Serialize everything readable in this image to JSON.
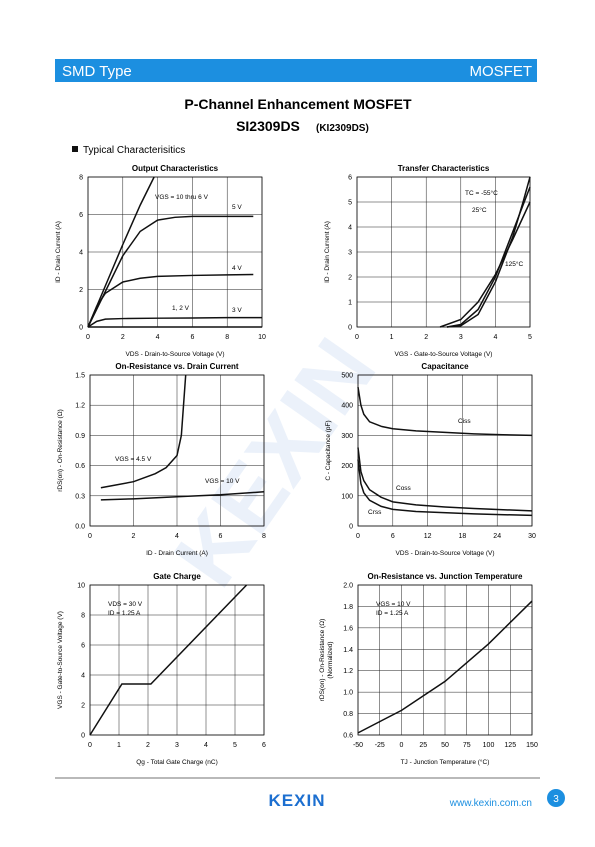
{
  "header": {
    "left": "SMD Type",
    "right": "MOSFET"
  },
  "title": {
    "line1": "P-Channel Enhancement MOSFET",
    "part": "SI2309DS",
    "alt": "(KI2309DS)"
  },
  "section": "Typical Characterisitics",
  "watermark": "KEXIN",
  "footer": {
    "logo": "KEXIN",
    "url": "www.kexin.com.cn",
    "page": "3"
  },
  "chart_data": [
    {
      "type": "line",
      "title": "Output Characteristics",
      "xlabel": "VDS - Drain-to-Source Voltage (V)",
      "ylabel": "ID - Drain Current (A)",
      "color": "#111111",
      "grid": true,
      "xlim": [
        0,
        10
      ],
      "xticks": [
        0,
        2,
        4,
        6,
        8,
        10
      ],
      "ylim": [
        0,
        8
      ],
      "yticks": [
        0,
        2,
        4,
        6,
        8
      ],
      "series": [
        {
          "name": "VGS = 10 thru 6 V",
          "x": [
            0,
            1,
            2,
            3,
            3.8
          ],
          "values": [
            0,
            2.2,
            4.4,
            6.5,
            8
          ]
        },
        {
          "name": "5 V",
          "x": [
            0,
            1,
            2,
            3,
            4,
            5,
            6,
            8,
            9.5
          ],
          "values": [
            0,
            1.9,
            3.8,
            5.1,
            5.7,
            5.85,
            5.9,
            5.9,
            5.9
          ]
        },
        {
          "name": "4 V",
          "x": [
            0,
            0.5,
            1,
            2,
            3,
            4,
            6,
            8,
            9.5
          ],
          "values": [
            0,
            1.1,
            1.8,
            2.4,
            2.6,
            2.7,
            2.75,
            2.78,
            2.8
          ]
        },
        {
          "name": "3 V",
          "x": [
            0,
            0.5,
            1,
            2,
            4,
            6,
            8,
            10
          ],
          "values": [
            0,
            0.3,
            0.42,
            0.45,
            0.47,
            0.48,
            0.5,
            0.5
          ]
        },
        {
          "name": "1, 2 V",
          "x": [
            0,
            10
          ],
          "values": [
            0,
            0
          ]
        }
      ]
    },
    {
      "type": "line",
      "title": "Transfer Characteristics",
      "xlabel": "VGS - Gate-to-Source Voltage (V)",
      "ylabel": "ID - Drain Current (A)",
      "color": "#111111",
      "grid": true,
      "xlim": [
        0,
        5
      ],
      "xticks": [
        0,
        1,
        2,
        3,
        4,
        5
      ],
      "ylim": [
        0,
        6
      ],
      "yticks": [
        0,
        1,
        2,
        3,
        4,
        5,
        6
      ],
      "series": [
        {
          "name": "TC = -55°C",
          "x": [
            2.6,
            3,
            3.5,
            4,
            4.5,
            4.8,
            5
          ],
          "values": [
            0,
            0.05,
            0.5,
            1.8,
            3.6,
            5,
            6
          ]
        },
        {
          "name": "25°C",
          "x": [
            2.6,
            3,
            3.5,
            4,
            4.5,
            5
          ],
          "values": [
            0,
            0.1,
            0.7,
            2,
            3.8,
            5.6
          ]
        },
        {
          "name": "125°C",
          "x": [
            2.4,
            3,
            3.5,
            4,
            4.5,
            5
          ],
          "values": [
            0,
            0.3,
            1,
            2.1,
            3.5,
            5
          ]
        }
      ]
    },
    {
      "type": "line",
      "title": "On-Resistance vs. Drain Current",
      "xlabel": "ID - Drain Current (A)",
      "ylabel": "rDS(on) - On-Resistance (Ω)",
      "color": "#111111",
      "grid": true,
      "xlim": [
        0,
        8
      ],
      "xticks": [
        0,
        2,
        4,
        6,
        8
      ],
      "ylim": [
        0,
        1.5
      ],
      "yticks": [
        {
          "value": 0,
          "label": "0.0"
        },
        0.3,
        0.6,
        0.9,
        1.2,
        1.5
      ],
      "series": [
        {
          "name": "VGS = 4.5 V",
          "x": [
            0.5,
            1,
            2,
            3,
            3.5,
            4,
            4.2,
            4.3,
            4.4
          ],
          "values": [
            0.38,
            0.4,
            0.44,
            0.52,
            0.58,
            0.7,
            0.9,
            1.2,
            1.5
          ]
        },
        {
          "name": "VGS = 10 V",
          "x": [
            0.5,
            2,
            4,
            6,
            8
          ],
          "values": [
            0.26,
            0.27,
            0.29,
            0.31,
            0.34
          ]
        }
      ]
    },
    {
      "type": "line",
      "title": "Capacitance",
      "xlabel": "VDS - Drain-to-Source Voltage (V)",
      "ylabel": "C - Capacitance (pF)",
      "color": "#111111",
      "grid": true,
      "xlim": [
        0,
        30
      ],
      "xticks": [
        0,
        6,
        12,
        18,
        24,
        30
      ],
      "ylim": [
        0,
        500
      ],
      "yticks": [
        0,
        100,
        200,
        300,
        400,
        500
      ],
      "series": [
        {
          "name": "Ciss",
          "x": [
            0,
            0.5,
            1,
            2,
            4,
            6,
            10,
            15,
            20,
            25,
            30
          ],
          "values": [
            460,
            400,
            370,
            345,
            330,
            322,
            315,
            310,
            305,
            302,
            300
          ]
        },
        {
          "name": "Coss",
          "x": [
            0,
            0.5,
            1,
            2,
            4,
            6,
            10,
            15,
            20,
            30
          ],
          "values": [
            260,
            180,
            150,
            120,
            95,
            80,
            70,
            63,
            58,
            50
          ]
        },
        {
          "name": "Crss",
          "x": [
            0,
            0.5,
            1,
            2,
            4,
            6,
            10,
            20,
            30
          ],
          "values": [
            220,
            140,
            110,
            85,
            65,
            55,
            48,
            40,
            35
          ]
        }
      ]
    },
    {
      "type": "line",
      "title": "Gate Charge",
      "xlabel": "Qg - Total Gate Charge (nC)",
      "ylabel": "VGS - Gate-to-Source Voltage (V)",
      "color": "#111111",
      "grid": true,
      "xlim": [
        0,
        6
      ],
      "xticks": [
        0,
        1,
        2,
        3,
        4,
        5,
        6
      ],
      "ylim": [
        0,
        10
      ],
      "yticks": [
        0,
        2,
        4,
        6,
        8,
        10
      ],
      "annotations": [
        "VDS = 30 V",
        "ID = 1.25 A"
      ],
      "series": [
        {
          "x": [
            0,
            1.1,
            2.1,
            5.4
          ],
          "values": [
            0,
            3.4,
            3.4,
            10
          ]
        }
      ]
    },
    {
      "type": "line",
      "title": "On-Resistance vs. Junction Temperature",
      "xlabel": "TJ - Junction Temperature (°C)",
      "ylabel": "rDS(on) - On-Resistance (Ω)",
      "ylabel2": "(Normalized)",
      "color": "#111111",
      "grid": true,
      "xlim": [
        -50,
        150
      ],
      "xticks": [
        -50,
        -25,
        0,
        25,
        50,
        75,
        100,
        125,
        150
      ],
      "ylim": [
        0.6,
        2.0
      ],
      "yticks": [
        0.6,
        0.8,
        {
          "value": 1,
          "label": "1.0"
        },
        1.2,
        1.4,
        1.6,
        1.8,
        {
          "value": 2,
          "label": "2.0"
        }
      ],
      "annotations": [
        "VGS = 10 V",
        "ID = 1.25 A"
      ],
      "series": [
        {
          "x": [
            -50,
            0,
            50,
            100,
            150
          ],
          "values": [
            0.62,
            0.83,
            1.1,
            1.45,
            1.85
          ]
        }
      ]
    }
  ]
}
